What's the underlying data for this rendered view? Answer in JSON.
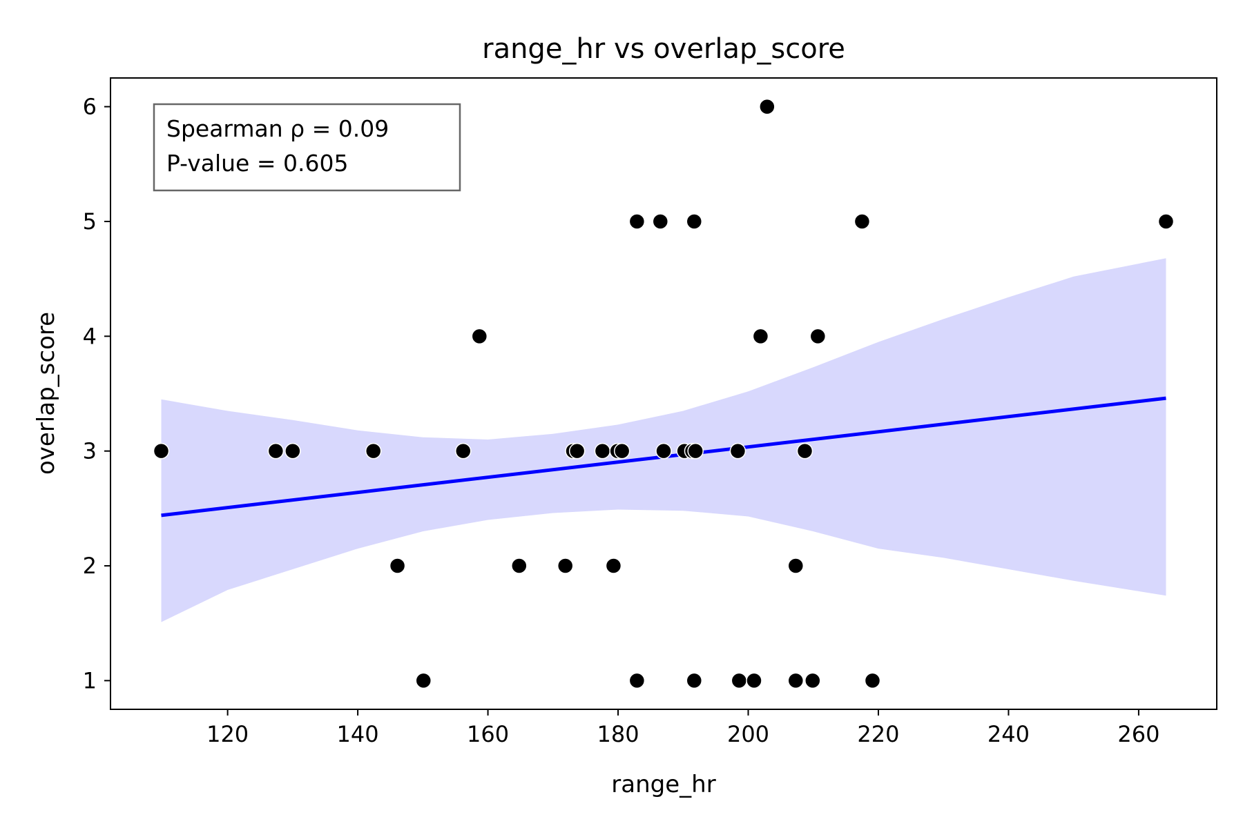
{
  "chart_data": {
    "type": "scatter",
    "title": "range_hr vs overlap_score",
    "xlabel": "range_hr",
    "ylabel": "overlap_score",
    "xlim": [
      102,
      272
    ],
    "ylim": [
      0.75,
      6.25
    ],
    "xticks": [
      120,
      140,
      160,
      180,
      200,
      220,
      240,
      260
    ],
    "yticks": [
      1,
      2,
      3,
      4,
      5,
      6
    ],
    "grid": false,
    "annotation": {
      "spearman": "Spearman ρ = 0.09",
      "pvalue": "P-value = 0.605"
    },
    "points": [
      {
        "x": 109.8,
        "y": 3
      },
      {
        "x": 127.4,
        "y": 3
      },
      {
        "x": 130.0,
        "y": 3
      },
      {
        "x": 142.4,
        "y": 3
      },
      {
        "x": 156.2,
        "y": 3
      },
      {
        "x": 173.1,
        "y": 3
      },
      {
        "x": 173.7,
        "y": 3
      },
      {
        "x": 177.6,
        "y": 3
      },
      {
        "x": 179.9,
        "y": 3
      },
      {
        "x": 180.6,
        "y": 3
      },
      {
        "x": 187.0,
        "y": 3
      },
      {
        "x": 190.2,
        "y": 3
      },
      {
        "x": 191.4,
        "y": 3
      },
      {
        "x": 191.9,
        "y": 3
      },
      {
        "x": 198.4,
        "y": 3
      },
      {
        "x": 208.7,
        "y": 3
      },
      {
        "x": 146.1,
        "y": 2
      },
      {
        "x": 164.8,
        "y": 2
      },
      {
        "x": 171.9,
        "y": 2
      },
      {
        "x": 179.3,
        "y": 2
      },
      {
        "x": 207.3,
        "y": 2
      },
      {
        "x": 150.1,
        "y": 1
      },
      {
        "x": 182.9,
        "y": 1
      },
      {
        "x": 191.7,
        "y": 1
      },
      {
        "x": 198.6,
        "y": 1
      },
      {
        "x": 200.9,
        "y": 1
      },
      {
        "x": 207.3,
        "y": 1
      },
      {
        "x": 209.9,
        "y": 1
      },
      {
        "x": 219.1,
        "y": 1
      },
      {
        "x": 158.7,
        "y": 4
      },
      {
        "x": 201.9,
        "y": 4
      },
      {
        "x": 210.7,
        "y": 4
      },
      {
        "x": 182.9,
        "y": 5
      },
      {
        "x": 186.5,
        "y": 5
      },
      {
        "x": 191.7,
        "y": 5
      },
      {
        "x": 217.5,
        "y": 5
      },
      {
        "x": 264.2,
        "y": 5
      },
      {
        "x": 202.9,
        "y": 6
      }
    ],
    "regression": {
      "x": [
        109.8,
        264.2
      ],
      "y": [
        2.44,
        3.46
      ],
      "color": "#0000ff"
    },
    "confidence_band": {
      "color": "#d8d8fd",
      "x": [
        109.8,
        120,
        130,
        140,
        150,
        160,
        170,
        180,
        190,
        200,
        210,
        220,
        230,
        240,
        250,
        264.2
      ],
      "upper": [
        3.45,
        3.35,
        3.27,
        3.18,
        3.12,
        3.1,
        3.15,
        3.23,
        3.35,
        3.52,
        3.73,
        3.95,
        4.15,
        4.34,
        4.52,
        4.68
      ],
      "lower": [
        1.51,
        1.79,
        1.97,
        2.15,
        2.3,
        2.4,
        2.46,
        2.49,
        2.48,
        2.43,
        2.3,
        2.15,
        2.07,
        1.97,
        1.87,
        1.74
      ]
    },
    "point_color": "#000000"
  }
}
